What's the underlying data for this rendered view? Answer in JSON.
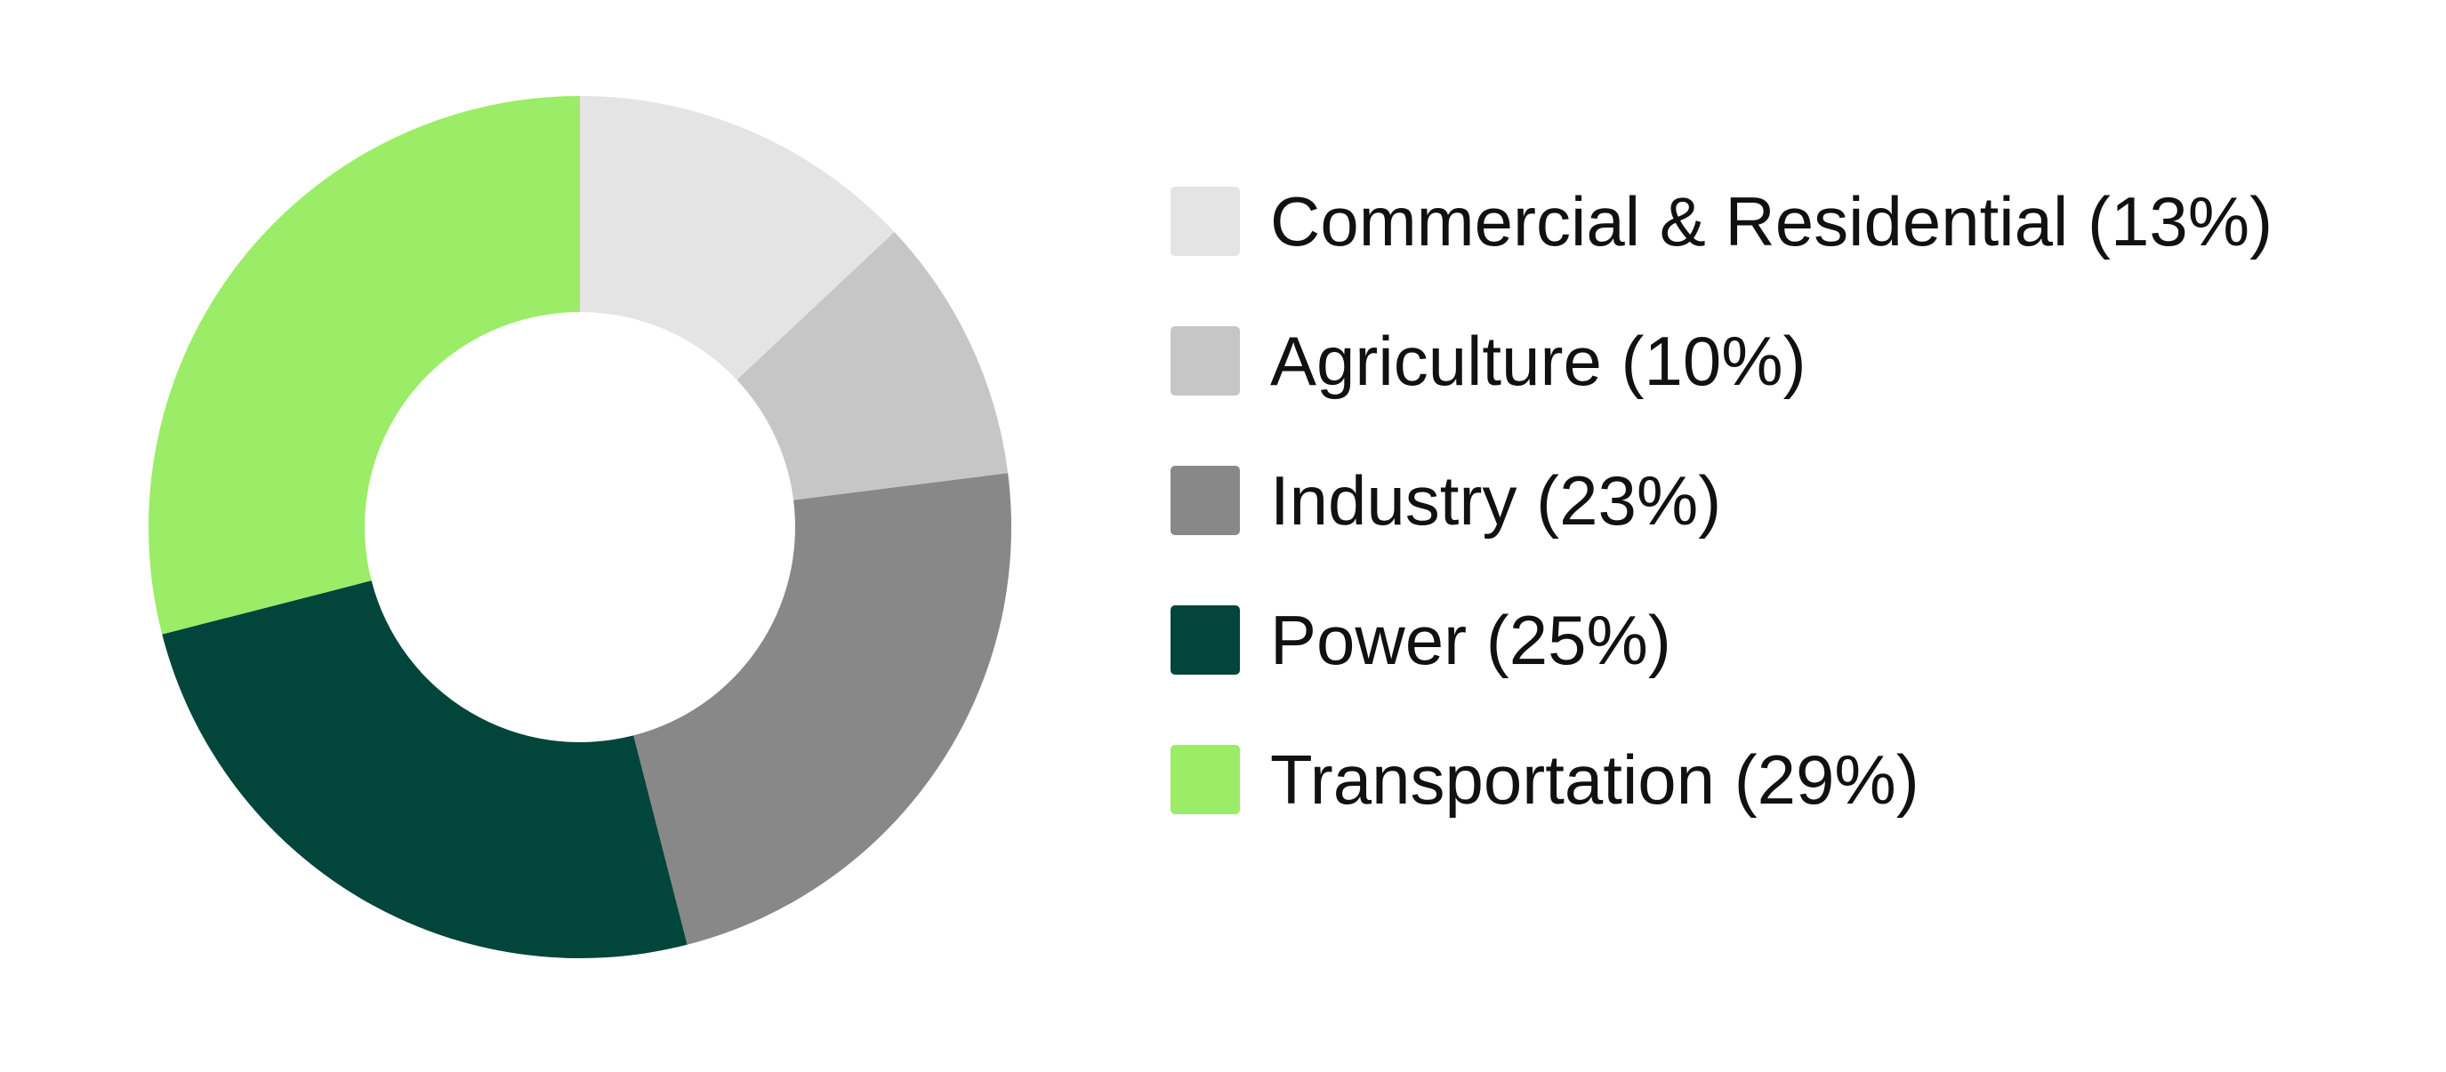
{
  "chart_data": {
    "type": "pie",
    "variant": "donut",
    "title": "",
    "series": [
      {
        "label": "Commercial & Residential (13%)",
        "value": 13,
        "color": "#e4e4e4"
      },
      {
        "label": "Agriculture (10%)",
        "value": 10,
        "color": "#c6c6c6"
      },
      {
        "label": "Industry (23%)",
        "value": 23,
        "color": "#888888"
      },
      {
        "label": "Power (25%)",
        "value": 25,
        "color": "#02453a"
      },
      {
        "label": "Transportation (29%)",
        "value": 29,
        "color": "#9bec66"
      }
    ],
    "start": "12 o'clock",
    "direction": "clockwise",
    "legend_position": "right"
  }
}
